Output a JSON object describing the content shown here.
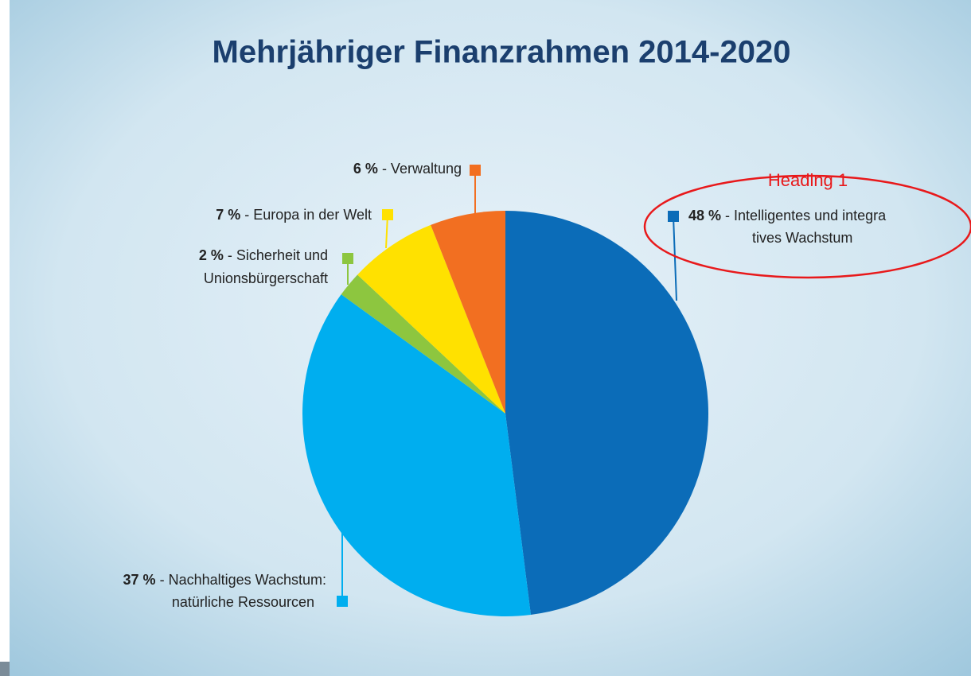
{
  "chart_data": {
    "type": "pie",
    "title": "Mehrjähriger Finanzrahmen 2014-2020",
    "categories": [
      [
        "- Intelligentes und integra",
        "tives Wachstum"
      ],
      [
        "- Nachhaltiges Wachstum:",
        "natürliche Ressourcen"
      ],
      [
        "- Sicherheit und",
        "Unionsbürgerschaft"
      ],
      [
        "- Europa in der Welt"
      ],
      [
        "- Verwaltung"
      ]
    ],
    "values": [
      48,
      37,
      2,
      7,
      6
    ],
    "value_labels": [
      "48 %",
      "37 %",
      "2 %",
      "7 %",
      "6 %"
    ],
    "colors": [
      "#0b6cb8",
      "#00aeef",
      "#8dc63f",
      "#ffe100",
      "#f26f21"
    ],
    "annotation": "Heading 1"
  }
}
